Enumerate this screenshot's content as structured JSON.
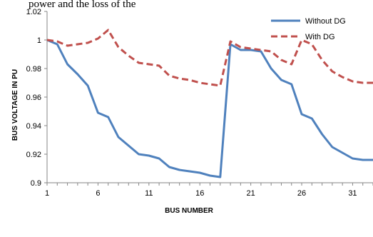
{
  "header_fragment": "power and the loss of the",
  "chart_data": {
    "type": "line",
    "title": "",
    "xlabel": "BUS NUMBER",
    "ylabel": "BUS VOLTAGE IN PU",
    "x": [
      1,
      2,
      3,
      4,
      5,
      6,
      7,
      8,
      9,
      10,
      11,
      12,
      13,
      14,
      15,
      16,
      17,
      18,
      19,
      20,
      21,
      22,
      23,
      24,
      25,
      26,
      27,
      28,
      29,
      30,
      31,
      32,
      33
    ],
    "xticks": [
      "1",
      "6",
      "11",
      "16",
      "21",
      "26",
      "31"
    ],
    "yticks": [
      "0.9",
      "0.92",
      "0.94",
      "0.96",
      "0.98",
      "1",
      "1.02"
    ],
    "ylim": [
      0.9,
      1.02
    ],
    "xlim": [
      1,
      33
    ],
    "grid": false,
    "legend_position": "top-right",
    "series": [
      {
        "name": "Without DG",
        "color": "#4f81bd",
        "dash": "solid",
        "values": [
          1.0,
          0.997,
          0.983,
          0.976,
          0.968,
          0.949,
          0.946,
          0.932,
          0.926,
          0.92,
          0.919,
          0.917,
          0.911,
          0.909,
          0.908,
          0.907,
          0.905,
          0.904,
          0.997,
          0.993,
          0.993,
          0.992,
          0.98,
          0.972,
          0.969,
          0.948,
          0.945,
          0.934,
          0.925,
          0.921,
          0.917,
          0.916,
          0.916
        ]
      },
      {
        "name": "With DG",
        "color": "#c0504d",
        "dash": "dashed",
        "values": [
          1.0,
          0.999,
          0.996,
          0.997,
          0.998,
          1.001,
          1.007,
          0.995,
          0.989,
          0.984,
          0.983,
          0.982,
          0.975,
          0.973,
          0.972,
          0.97,
          0.969,
          0.968,
          0.999,
          0.995,
          0.994,
          0.993,
          0.992,
          0.986,
          0.983,
          1.0,
          0.997,
          0.986,
          0.978,
          0.974,
          0.971,
          0.97,
          0.97
        ]
      }
    ]
  }
}
